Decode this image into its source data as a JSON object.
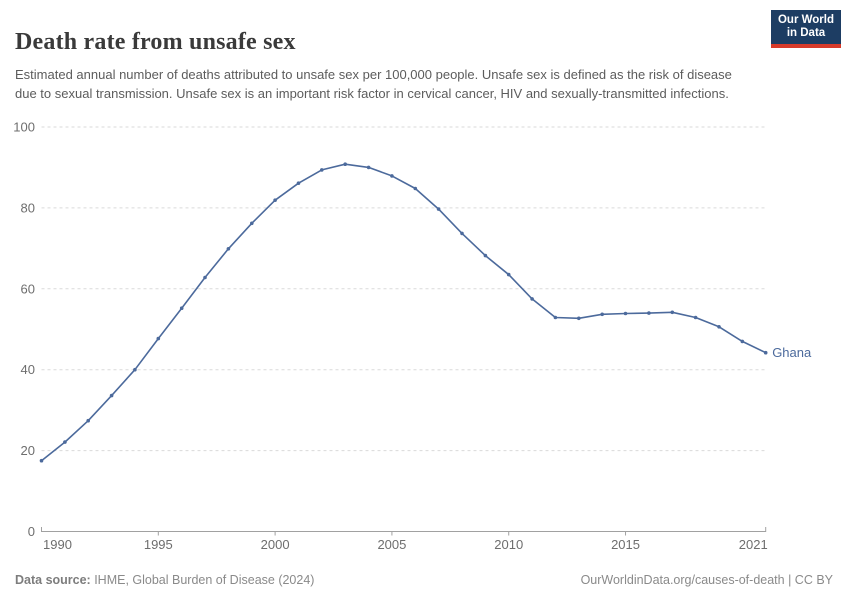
{
  "header": {
    "title": "Death rate from unsafe sex",
    "subtitle": "Estimated annual number of deaths attributed to unsafe sex per 100,000 people. Unsafe sex is defined as the risk of disease due to sexual transmission. Unsafe sex is an important risk factor in cervical cancer, HIV and sexually-transmitted infections."
  },
  "logo": {
    "line1": "Our World",
    "line2": "in Data",
    "bg_color": "#1d3d63",
    "accent_color": "#d73a2a"
  },
  "chart_data": {
    "type": "line",
    "title": "Death rate from unsafe sex",
    "xlabel": "",
    "ylabel": "",
    "xlim": [
      1990,
      2021
    ],
    "ylim": [
      0,
      100
    ],
    "xticks": [
      1990,
      1995,
      2000,
      2005,
      2010,
      2015,
      2021
    ],
    "yticks": [
      0,
      20,
      40,
      60,
      80,
      100
    ],
    "grid": "horizontal-dashed",
    "legend_position": "end-of-line-label",
    "x": [
      1990,
      1991,
      1992,
      1993,
      1994,
      1995,
      1996,
      1997,
      1998,
      1999,
      2000,
      2001,
      2002,
      2003,
      2004,
      2005,
      2006,
      2007,
      2008,
      2009,
      2010,
      2011,
      2012,
      2013,
      2014,
      2015,
      2016,
      2017,
      2018,
      2019,
      2020,
      2021
    ],
    "series": [
      {
        "name": "Ghana",
        "values": [
          17.5,
          22.1,
          27.4,
          33.6,
          40.0,
          47.7,
          55.2,
          62.8,
          69.9,
          76.2,
          81.9,
          86.1,
          89.4,
          90.8,
          90.0,
          87.9,
          84.8,
          79.7,
          73.7,
          68.2,
          63.5,
          57.5,
          52.9,
          52.7,
          53.7,
          53.9,
          54.0,
          54.2,
          52.9,
          50.6,
          47.0,
          44.2
        ]
      }
    ]
  },
  "colors": {
    "line": "#4c6a9c",
    "grid": "#dadada",
    "axis": "#a1a1a1",
    "tick_label": "#6e6e6e",
    "title": "#3a3a3a",
    "subtitle": "#5c5c5c",
    "footer": "#8a8a8a"
  },
  "footer": {
    "source_label": "Data source:",
    "source_text": " IHME, Global Burden of Disease (2024)",
    "link_text": "OurWorldinData.org/causes-of-death | CC BY"
  }
}
